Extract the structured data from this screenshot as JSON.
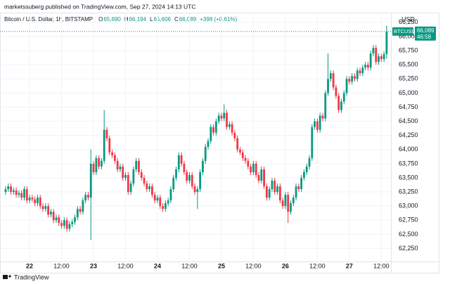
{
  "header": {
    "byline": "marketssuberg published on TradingView.com, Sep 27, 2024 14:13 UTC"
  },
  "footer": {
    "brand": "TradingView"
  },
  "chart_data": {
    "type": "candlestick",
    "title": "Bitcoin / U.S. Dollar, 1h, BITSTAMP",
    "ohlc_legend": [
      {
        "key": "O",
        "value": 65690,
        "label": "65,690"
      },
      {
        "key": "H",
        "value": 66194,
        "label": "66,194"
      },
      {
        "key": "L",
        "value": 65606,
        "label": "65,606"
      },
      {
        "key": "C",
        "value": 66089,
        "label": "66,089"
      }
    ],
    "change": "+398 (+0.61%)",
    "currency": "USD",
    "symbol": "BTCUSD",
    "last_price": {
      "value": 66089,
      "label": "66,089"
    },
    "countdown": "46:58",
    "up_color": "#089981",
    "down_color": "#f23645",
    "grid": true,
    "xlim": [
      -2.1,
      144.6
    ],
    "ylim": [
      62020,
      66410
    ],
    "xticks": [
      {
        "value": 9,
        "label": "22"
      },
      {
        "value": 21,
        "label": "12:00"
      },
      {
        "value": 33,
        "label": "23"
      },
      {
        "value": 45,
        "label": "12:00"
      },
      {
        "value": 57,
        "label": "24"
      },
      {
        "value": 69,
        "label": "12:00"
      },
      {
        "value": 81,
        "label": "25"
      },
      {
        "value": 93,
        "label": "12:00"
      },
      {
        "value": 105,
        "label": "26"
      },
      {
        "value": 117,
        "label": "12:00"
      },
      {
        "value": 129,
        "label": "27"
      },
      {
        "value": 141,
        "label": "12:00"
      }
    ],
    "yticks": [
      {
        "value": 62250,
        "label": "62,250"
      },
      {
        "value": 62500,
        "label": "62,500"
      },
      {
        "value": 62750,
        "label": "62,750"
      },
      {
        "value": 63000,
        "label": "63,000"
      },
      {
        "value": 63250,
        "label": "63,250"
      },
      {
        "value": 63500,
        "label": "63,500"
      },
      {
        "value": 63750,
        "label": "63,750"
      },
      {
        "value": 64000,
        "label": "64,000"
      },
      {
        "value": 64250,
        "label": "64,250"
      },
      {
        "value": 64500,
        "label": "64,500"
      },
      {
        "value": 64750,
        "label": "64,750"
      },
      {
        "value": 65000,
        "label": "65,000"
      },
      {
        "value": 65250,
        "label": "65,250"
      },
      {
        "value": 65500,
        "label": "65,500"
      },
      {
        "value": 65750,
        "label": "65,750"
      },
      {
        "value": 66000,
        "label": "66,000"
      },
      {
        "value": 66250,
        "label": "66,250"
      }
    ],
    "open": [
      63250,
      63300,
      63350,
      63250,
      63280,
      63200,
      63230,
      63150,
      63300,
      63100,
      63150,
      63120,
      63050,
      63150,
      63000,
      62950,
      63000,
      62850,
      62900,
      62750,
      62800,
      62700,
      62650,
      62750,
      62600,
      62680,
      62720,
      62800,
      62950,
      62900,
      63100,
      63200,
      63150,
      63750,
      63600,
      63850,
      63700,
      63800,
      64350,
      64200,
      63950,
      63900,
      63800,
      63650,
      63700,
      63500,
      63550,
      63250,
      63400,
      63650,
      63800,
      63600,
      63500,
      63400,
      63300,
      63350,
      63200,
      63100,
      63150,
      63000,
      62950,
      63050,
      63100,
      63300,
      63500,
      63650,
      63900,
      63750,
      63600,
      63450,
      63550,
      63350,
      63250,
      63300,
      63600,
      63800,
      64050,
      64150,
      64400,
      64300,
      64500,
      64600,
      64550,
      64650,
      64400,
      64450,
      64300,
      64200,
      64000,
      63950,
      63850,
      63800,
      63700,
      63600,
      63750,
      63550,
      63450,
      63650,
      63350,
      63150,
      63300,
      63450,
      63250,
      63350,
      63100,
      63000,
      63200,
      62900,
      63050,
      63150,
      63350,
      63300,
      63500,
      63600,
      63700,
      63850,
      64400,
      64500,
      64350,
      64600,
      64550,
      65000,
      65250,
      65350,
      65100,
      64950,
      64700,
      64850,
      65000,
      65250,
      65200,
      65300,
      65250,
      65400,
      65350,
      65450,
      65500,
      65450,
      65700,
      65800,
      65550,
      65650,
      65600,
      65690
    ],
    "high": [
      63350,
      63400,
      63400,
      63330,
      63330,
      63280,
      63280,
      63350,
      63350,
      63200,
      63200,
      63170,
      63200,
      63200,
      63050,
      63050,
      63050,
      62950,
      62950,
      62850,
      62850,
      62750,
      62800,
      62800,
      62730,
      62770,
      62850,
      63000,
      63000,
      63150,
      63250,
      63250,
      64000,
      63800,
      63900,
      63900,
      63850,
      64700,
      64400,
      64250,
      64000,
      63950,
      63850,
      63750,
      63750,
      63600,
      63600,
      63450,
      63700,
      63850,
      63850,
      63650,
      63550,
      63450,
      63400,
      63400,
      63250,
      63200,
      63200,
      63050,
      63100,
      63150,
      63350,
      63550,
      63700,
      63950,
      63950,
      63800,
      63650,
      63600,
      63600,
      63400,
      63350,
      63650,
      63850,
      64100,
      64200,
      64450,
      64450,
      64550,
      64650,
      64650,
      64800,
      64700,
      64500,
      64500,
      64350,
      64250,
      64050,
      64000,
      63900,
      63850,
      63750,
      63800,
      63800,
      63600,
      63700,
      63700,
      63400,
      63350,
      63500,
      63500,
      63400,
      63400,
      63150,
      63250,
      63250,
      63100,
      63200,
      63400,
      63400,
      63550,
      63650,
      63750,
      63900,
      64450,
      64550,
      64550,
      64650,
      64650,
      65050,
      65700,
      65400,
      65400,
      65150,
      65000,
      64900,
      65050,
      65300,
      65300,
      65350,
      65350,
      65450,
      65450,
      65500,
      65550,
      65550,
      65750,
      65850,
      65850,
      65700,
      65700,
      65740,
      66194
    ],
    "low": [
      63200,
      63250,
      63200,
      63200,
      63150,
      63150,
      63100,
      63100,
      63050,
      63050,
      63070,
      63000,
      63000,
      62950,
      62900,
      62900,
      62800,
      62800,
      62700,
      62700,
      62650,
      62600,
      62600,
      62550,
      62550,
      62630,
      62670,
      62750,
      62850,
      62850,
      63050,
      63100,
      62400,
      63550,
      63550,
      63650,
      63650,
      63750,
      64150,
      63900,
      63850,
      63750,
      63600,
      63600,
      63450,
      63450,
      63200,
      63200,
      63350,
      63600,
      63550,
      63450,
      63350,
      63250,
      63250,
      63150,
      63050,
      63050,
      62950,
      62900,
      62900,
      63000,
      63050,
      63250,
      63450,
      63600,
      63700,
      63550,
      63400,
      63400,
      63300,
      63200,
      62950,
      63250,
      63550,
      63750,
      64000,
      64100,
      64250,
      64250,
      64450,
      64500,
      64500,
      64350,
      64350,
      64250,
      64150,
      63950,
      63900,
      63800,
      63750,
      63650,
      63550,
      63550,
      63500,
      63400,
      63400,
      63300,
      63100,
      63100,
      63250,
      63200,
      63200,
      63050,
      62950,
      62950,
      62700,
      62850,
      63000,
      63100,
      63250,
      63250,
      63450,
      63550,
      63650,
      63800,
      64350,
      64300,
      64300,
      64500,
      64500,
      64950,
      65200,
      65050,
      64900,
      64650,
      64650,
      64800,
      64950,
      65150,
      65150,
      65200,
      65200,
      65300,
      65300,
      65400,
      65400,
      65400,
      65650,
      65500,
      65500,
      65550,
      65550,
      65606
    ],
    "close": [
      63300,
      63350,
      63250,
      63280,
      63200,
      63230,
      63150,
      63300,
      63100,
      63150,
      63120,
      63050,
      63150,
      63000,
      62950,
      63000,
      62850,
      62900,
      62750,
      62800,
      62700,
      62650,
      62750,
      62600,
      62680,
      62720,
      62800,
      62950,
      62900,
      63100,
      63200,
      63150,
      63750,
      63600,
      63850,
      63700,
      63800,
      64350,
      64200,
      63950,
      63900,
      63800,
      63650,
      63700,
      63500,
      63550,
      63250,
      63400,
      63650,
      63800,
      63600,
      63500,
      63400,
      63300,
      63350,
      63200,
      63100,
      63150,
      63000,
      62950,
      63050,
      63100,
      63300,
      63500,
      63650,
      63900,
      63750,
      63600,
      63450,
      63550,
      63350,
      63250,
      63300,
      63600,
      63800,
      64050,
      64150,
      64400,
      64300,
      64500,
      64600,
      64550,
      64650,
      64400,
      64450,
      64300,
      64200,
      64000,
      63950,
      63850,
      63800,
      63700,
      63600,
      63750,
      63550,
      63450,
      63650,
      63350,
      63150,
      63300,
      63450,
      63250,
      63350,
      63100,
      63000,
      63200,
      62900,
      63050,
      63150,
      63350,
      63300,
      63500,
      63600,
      63700,
      63850,
      64400,
      64500,
      64350,
      64600,
      64550,
      65000,
      65250,
      65350,
      65100,
      64950,
      64700,
      64850,
      65000,
      65250,
      65200,
      65300,
      65250,
      65400,
      65350,
      65450,
      65500,
      65450,
      65700,
      65800,
      65550,
      65650,
      65600,
      65690,
      66089
    ]
  }
}
